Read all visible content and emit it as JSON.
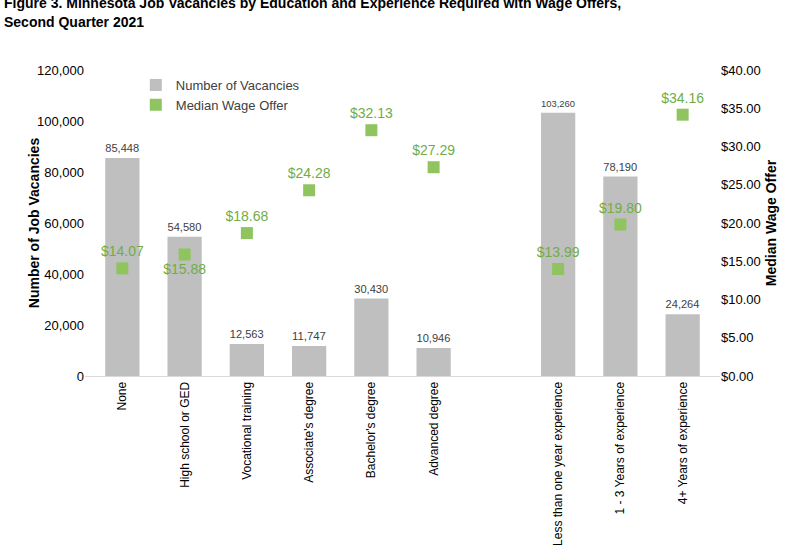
{
  "chart_data": {
    "type": "bar",
    "title": "Figure 3. Minnesota Job Vacancies by Education and Experience Required with Wage Offers, Second Quarter 2021",
    "categories": [
      "None",
      "High school or GED",
      "Vocational training",
      "Associate's degree",
      "Bachelor's degree",
      "Advanced degree",
      null,
      "Less than one year experience",
      "1 - 3 Years of experience",
      "4+ Years of experience"
    ],
    "y_label": "Number of Job Vacancies",
    "y2_label": "Median Wage Offer",
    "ylim": [
      0,
      120000
    ],
    "yticks": [
      0,
      {
        "value": 20000,
        "label": "20,000"
      },
      {
        "value": 40000,
        "label": "40,000"
      },
      {
        "value": 60000,
        "label": "60,000"
      },
      {
        "value": 80000,
        "label": "80,000"
      },
      {
        "value": 100000,
        "label": "100,000"
      },
      {
        "value": 120000,
        "label": "120,000"
      }
    ],
    "y2lim": [
      0,
      40
    ],
    "y2ticks": [
      {
        "value": 0,
        "label": "$0.00"
      },
      {
        "value": 5,
        "label": "$5.00"
      },
      {
        "value": 10,
        "label": "$10.00"
      },
      {
        "value": 15,
        "label": "$15.00"
      },
      {
        "value": 20,
        "label": "$20.00"
      },
      {
        "value": 25,
        "label": "$25.00"
      },
      {
        "value": 30,
        "label": "$30.00"
      },
      {
        "value": 35,
        "label": "$35.00"
      },
      {
        "value": 40,
        "label": "$40.00"
      }
    ],
    "grid": false,
    "legend": "upper left",
    "data_labels": true,
    "series": [
      {
        "name": "Number of Vacancies",
        "type": "bar",
        "color": "#bfbfbf",
        "values": [
          85448,
          54580,
          12563,
          11747,
          30430,
          10946,
          null,
          103260,
          78190,
          24264
        ],
        "value_labels": [
          "85,448",
          "54,580",
          "12,563",
          "11,747",
          "30,430",
          "10,946",
          null,
          "103,260",
          "78,190",
          "24,264"
        ]
      },
      {
        "name": "Median Wage Offer",
        "type": "scatter",
        "marker": "square",
        "color": "#8fc45f",
        "axis": "y2",
        "values": [
          14.07,
          15.88,
          18.68,
          24.28,
          32.13,
          27.29,
          null,
          13.99,
          19.8,
          34.16
        ],
        "value_labels": [
          "$14.07",
          "$15.88",
          "$18.68",
          "$24.28",
          "$32.13",
          "$27.29",
          null,
          "$13.99",
          "$19.80",
          "$34.16"
        ]
      }
    ]
  }
}
